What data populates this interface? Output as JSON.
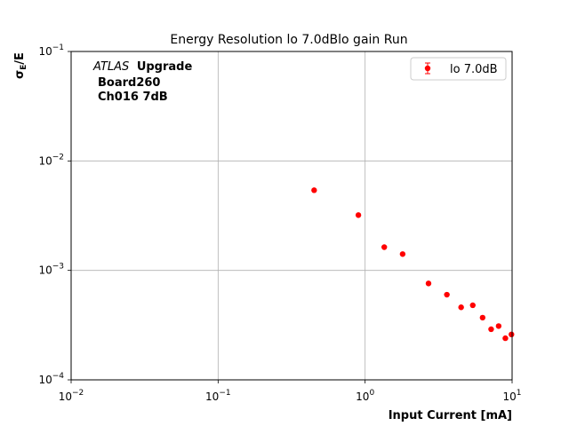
{
  "chart_data": {
    "type": "scatter",
    "title": "Energy Resolution lo 7.0dBlo gain Run",
    "xlabel": "Input Current [mA]",
    "ylabel_main": "σ",
    "ylabel_sub": "E",
    "ylabel_tail": "/E",
    "xscale": "log",
    "yscale": "log",
    "xlim": [
      0.01,
      10
    ],
    "ylim": [
      0.0001,
      0.1
    ],
    "x_ticks": [
      {
        "base": "10",
        "exp": "−2"
      },
      {
        "base": "10",
        "exp": "−1"
      },
      {
        "base": "10",
        "exp": "0"
      },
      {
        "base": "10",
        "exp": "1"
      }
    ],
    "y_ticks": [
      {
        "base": "10",
        "exp": "−4"
      },
      {
        "base": "10",
        "exp": "−3"
      },
      {
        "base": "10",
        "exp": "−2"
      },
      {
        "base": "10",
        "exp": "−1"
      }
    ],
    "grid": true,
    "legend_position": "top-right",
    "annotation": {
      "italic": "ATLAS",
      "bold": "Upgrade",
      "line2": "Board260",
      "line3": "Ch016 7dB"
    },
    "series": [
      {
        "name": "lo 7.0dB",
        "color": "#ff0000",
        "x": [
          0.45,
          0.9,
          1.35,
          1.8,
          2.7,
          3.6,
          4.5,
          5.4,
          6.3,
          7.2,
          8.1,
          9.0,
          9.9
        ],
        "y": [
          0.0054,
          0.0032,
          0.00163,
          0.00141,
          0.00076,
          0.0006,
          0.00046,
          0.00048,
          0.00037,
          0.00029,
          0.00031,
          0.00024,
          0.00026
        ]
      }
    ]
  }
}
